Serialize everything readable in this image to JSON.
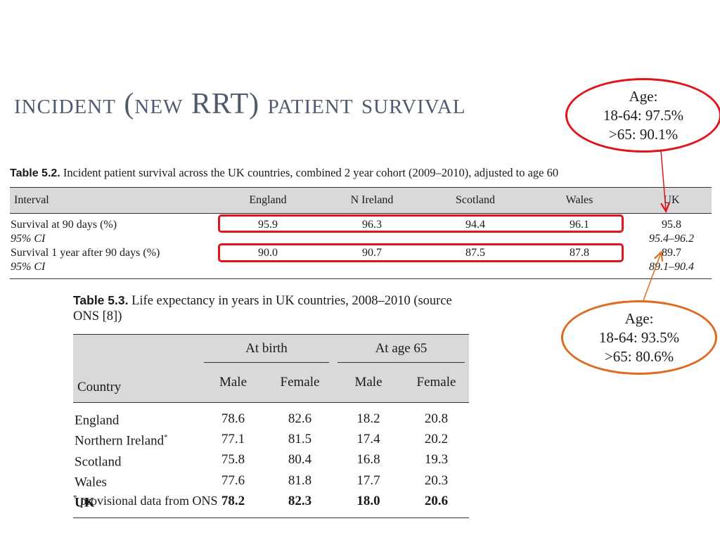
{
  "slide_title": {
    "part1": "incident (new ",
    "part2": "RRT",
    "part3": ") patient survival"
  },
  "table52": {
    "caption_label": "Table 5.2.",
    "caption_text": "Incident patient survival across the UK countries, combined 2 year cohort (2009–2010), adjusted to age 60",
    "headers": [
      "Interval",
      "England",
      "N Ireland",
      "Scotland",
      "Wales",
      "UK"
    ],
    "rows": [
      {
        "label": "Survival at 90 days (%)",
        "values": [
          "95.9",
          "96.3",
          "94.4",
          "96.1",
          "95.8"
        ]
      },
      {
        "label": "95% CI",
        "values": [
          "",
          "",
          "",
          "",
          "95.4–96.2"
        ]
      },
      {
        "label": "Survival 1 year after 90 days (%)",
        "values": [
          "90.0",
          "90.7",
          "87.5",
          "87.8",
          "89.7"
        ]
      },
      {
        "label": "95% CI",
        "values": [
          "",
          "",
          "",
          "",
          "89.1–90.4"
        ]
      }
    ]
  },
  "callout_red": {
    "line1": "Age:",
    "line2": "18-64: 97.5%",
    "line3": ">65: 90.1%"
  },
  "callout_orange": {
    "line1": "Age:",
    "line2": "18-64: 93.5%",
    "line3": ">65: 80.6%"
  },
  "table53": {
    "caption_label": "Table 5.3.",
    "caption_text": "Life expectancy in years in UK countries, 2008–2010 (source ONS [8])",
    "group_headers": [
      "At birth",
      "At age 65"
    ],
    "col_headers": [
      "Country",
      "Male",
      "Female",
      "Male",
      "Female"
    ],
    "rows": [
      {
        "country": "England",
        "star": "",
        "values": [
          "78.6",
          "82.6",
          "18.2",
          "20.8"
        ]
      },
      {
        "country": "Northern Ireland",
        "star": "*",
        "values": [
          "77.1",
          "81.5",
          "17.4",
          "20.2"
        ]
      },
      {
        "country": "Scotland",
        "star": "",
        "values": [
          "75.8",
          "80.4",
          "16.8",
          "19.3"
        ]
      },
      {
        "country": "Wales",
        "star": "",
        "values": [
          "77.6",
          "81.8",
          "17.7",
          "20.3"
        ]
      },
      {
        "country": "UK",
        "star": "",
        "values": [
          "78.2",
          "82.3",
          "18.0",
          "20.6"
        ]
      }
    ],
    "footnote_star": "*",
    "footnote_text": " provisional data from ONS"
  },
  "colors": {
    "title": "#505a6e",
    "highlight_red": "#e0151c",
    "highlight_orange": "#e06b1d",
    "header_bg": "#d9d9d9"
  }
}
